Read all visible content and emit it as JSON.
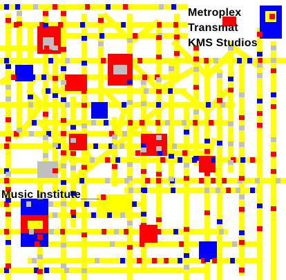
{
  "map": {
    "title": "",
    "labels": {
      "metroplex": "Metroplex",
      "transmat": "Transmat",
      "kms_studios": "KMS Studios",
      "music_institute": "Music Institute___"
    },
    "palette": {
      "road": "#ffff00",
      "red": "#ff0000",
      "blue": "#0000ff",
      "gray": "#bfbfbf",
      "background": "#ffffff",
      "text": "#000000"
    }
  }
}
